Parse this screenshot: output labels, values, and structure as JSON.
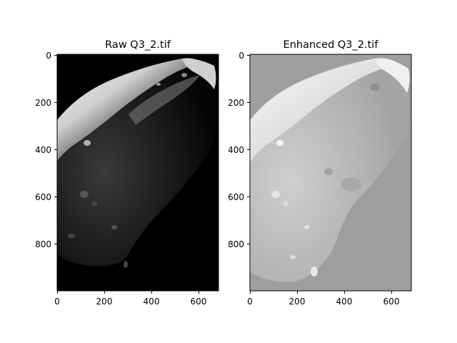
{
  "panels": [
    {
      "title": "Raw Q3_2.tif",
      "x_ticks": [
        "0",
        "200",
        "400",
        "600"
      ],
      "y_ticks": [
        "0",
        "200",
        "400",
        "600",
        "800"
      ],
      "background": "#000000"
    },
    {
      "title": "Enhanced Q3_2.tif",
      "x_ticks": [
        "0",
        "200",
        "400",
        "600"
      ],
      "y_ticks": [
        "0",
        "200",
        "400",
        "600",
        "800"
      ],
      "background": "#9e9e9e"
    }
  ],
  "image_extent": {
    "width": 690,
    "height": 1000
  }
}
